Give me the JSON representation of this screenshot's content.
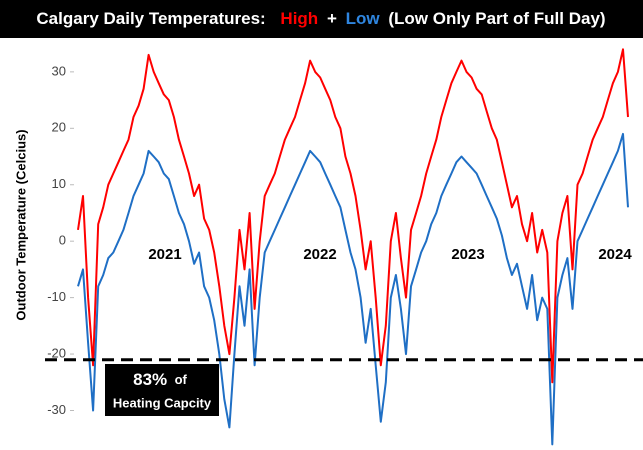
{
  "chart_data": {
    "type": "line",
    "title_prefix": "Calgary Daily Temperatures:",
    "title_joiner": "+",
    "title_suffix": "(Low Only Part of Full Day)",
    "y_label": "Outdoor Temperature (Celcius)",
    "ylim": [
      -37,
      36
    ],
    "yticks": [
      -30,
      -20,
      -10,
      0,
      10,
      20,
      30
    ],
    "grid": false,
    "year_labels": [
      "2021",
      "2022",
      "2023",
      "2024"
    ],
    "reference_line": {
      "value": -21,
      "label_main": "83%",
      "label_of": "of",
      "label_sub": "Heating Capcity"
    },
    "categories": [
      null,
      null,
      null,
      null,
      null,
      null,
      null,
      null,
      null,
      null,
      null,
      null,
      null,
      null,
      null,
      null,
      null,
      null,
      null,
      null,
      null,
      null,
      null,
      null,
      null,
      null,
      null,
      null,
      null,
      null,
      null,
      null,
      null,
      null,
      null,
      null,
      null,
      null,
      null,
      null,
      null,
      null,
      null,
      null,
      null,
      null,
      null,
      null,
      null,
      null,
      null,
      null,
      null,
      null,
      null,
      null,
      null,
      null,
      null,
      null,
      null,
      null,
      null,
      null,
      null,
      null,
      null,
      null,
      null,
      null,
      null,
      null,
      null,
      null,
      null,
      null,
      null,
      null,
      null,
      null,
      null,
      null,
      null,
      null,
      null,
      null,
      null,
      null,
      null,
      null,
      null,
      null,
      null,
      null,
      null,
      null,
      null,
      null,
      null,
      null,
      null,
      null,
      null,
      null,
      null,
      null,
      null,
      null,
      null,
      null
    ],
    "series": [
      {
        "name": "High",
        "color": "#ff0000",
        "values": [
          2,
          8,
          -10,
          -22,
          3,
          6,
          10,
          12,
          14,
          16,
          18,
          22,
          24,
          27,
          33,
          30,
          28,
          26,
          25,
          22,
          18,
          15,
          12,
          8,
          10,
          4,
          2,
          -2,
          -8,
          -15,
          -20,
          -10,
          2,
          -5,
          5,
          -12,
          0,
          8,
          10,
          12,
          15,
          18,
          20,
          22,
          25,
          28,
          32,
          30,
          29,
          27,
          25,
          22,
          20,
          15,
          12,
          8,
          2,
          -5,
          0,
          -10,
          -22,
          -15,
          0,
          5,
          -3,
          -10,
          2,
          5,
          8,
          12,
          15,
          18,
          22,
          25,
          28,
          30,
          32,
          30,
          29,
          27,
          26,
          23,
          20,
          18,
          14,
          10,
          6,
          8,
          3,
          0,
          5,
          -2,
          2,
          -2,
          -25,
          0,
          5,
          8,
          -5,
          10,
          12,
          15,
          18,
          20,
          22,
          25,
          28,
          30,
          34,
          22
        ]
      },
      {
        "name": "Low",
        "color": "#1f6fc5",
        "values": [
          -8,
          -5,
          -18,
          -30,
          -8,
          -6,
          -3,
          -2,
          0,
          2,
          5,
          8,
          10,
          12,
          16,
          15,
          14,
          12,
          11,
          8,
          5,
          3,
          0,
          -4,
          -2,
          -8,
          -10,
          -14,
          -20,
          -28,
          -33,
          -20,
          -8,
          -15,
          -5,
          -22,
          -10,
          -2,
          0,
          2,
          4,
          6,
          8,
          10,
          12,
          14,
          16,
          15,
          14,
          12,
          10,
          8,
          6,
          2,
          -2,
          -5,
          -10,
          -18,
          -12,
          -22,
          -32,
          -25,
          -10,
          -6,
          -12,
          -20,
          -8,
          -5,
          -2,
          0,
          3,
          5,
          8,
          10,
          12,
          14,
          15,
          14,
          13,
          12,
          10,
          8,
          6,
          4,
          1,
          -3,
          -6,
          -4,
          -8,
          -12,
          -6,
          -14,
          -10,
          -12,
          -36,
          -10,
          -6,
          -3,
          -12,
          0,
          2,
          4,
          6,
          8,
          10,
          12,
          14,
          16,
          19,
          6
        ]
      }
    ]
  }
}
